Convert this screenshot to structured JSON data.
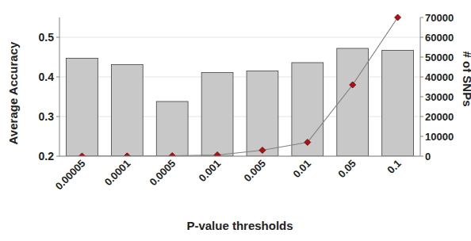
{
  "chart_data": {
    "type": "bar",
    "x_label": "P-value thresholds",
    "y_label": "Average Accuracy",
    "y2_label": "# of SNPs",
    "categories": [
      "0.00005",
      "0.0001",
      "0.0005",
      "0.001",
      "0.005",
      "0.01",
      "0.05",
      "0.1"
    ],
    "series": [
      {
        "type": "bar",
        "color": "#c8c8c8",
        "values": [
          0.447,
          0.431,
          0.338,
          0.411,
          0.415,
          0.436,
          0.472,
          0.467
        ]
      },
      {
        "type": "line",
        "axis": "y2",
        "color": "#808080",
        "marker": "diamond",
        "values": [
          50,
          80,
          200,
          600,
          3000,
          7000,
          36000,
          70000
        ]
      }
    ],
    "ylim": [
      0.2,
      0.55
    ],
    "yticks": [
      0.2,
      0.3,
      0.4,
      0.5
    ],
    "y2lim": [
      0,
      70000
    ],
    "y2ticks": [
      0,
      10000,
      20000,
      30000,
      40000,
      50000,
      60000,
      70000
    ],
    "grid": true
  }
}
